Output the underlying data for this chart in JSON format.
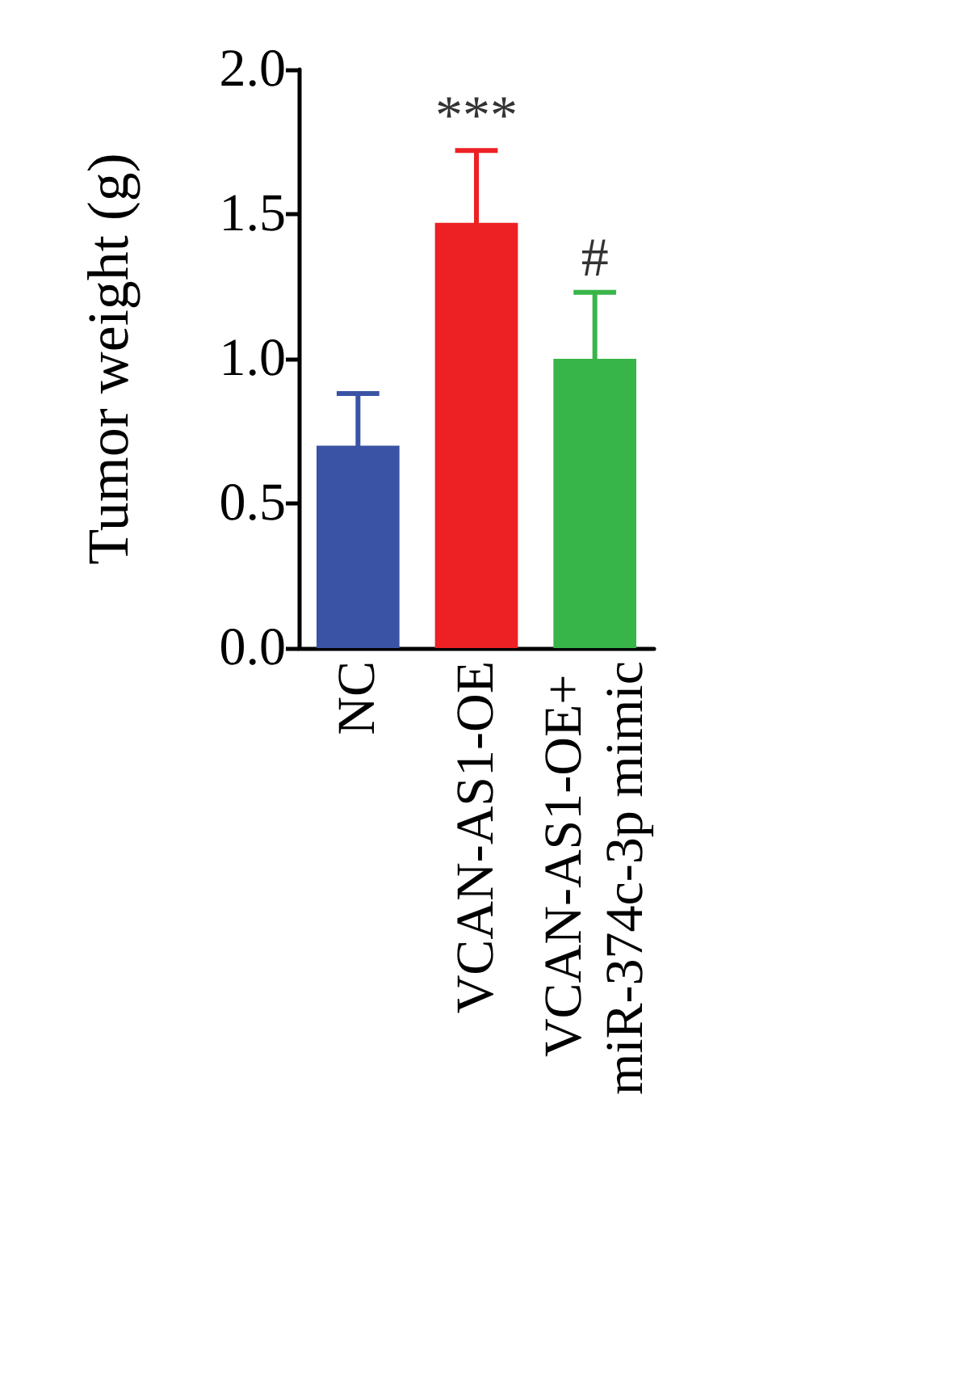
{
  "chart_data": {
    "type": "bar",
    "ylabel": "Tumor weight (g)",
    "categories": [
      "NC",
      "VCAN-AS1-OE",
      "VCAN-AS1-OE+ miR-374c-3p mimic"
    ],
    "values": [
      0.7,
      1.47,
      1.0
    ],
    "colors": [
      "#3a53a4",
      "#ed2024",
      "#38b549"
    ],
    "errors": [
      0.18,
      0.25,
      0.23
    ],
    "ylim": [
      0,
      2
    ],
    "yticks": [
      {
        "value": 0,
        "label": "0.0"
      },
      {
        "value": 0.5,
        "label": "0.5"
      },
      {
        "value": 1,
        "label": "1.0"
      },
      {
        "value": 1.5,
        "label": "1.5"
      },
      {
        "value": 2,
        "label": "2.0"
      }
    ],
    "annotations": [
      {
        "text": "***",
        "x": "VCAN-AS1-OE",
        "y": 1.72
      },
      {
        "text": "#",
        "x": "VCAN-AS1-OE+ miR-374c-3p mimic",
        "y": 1.23
      }
    ]
  }
}
